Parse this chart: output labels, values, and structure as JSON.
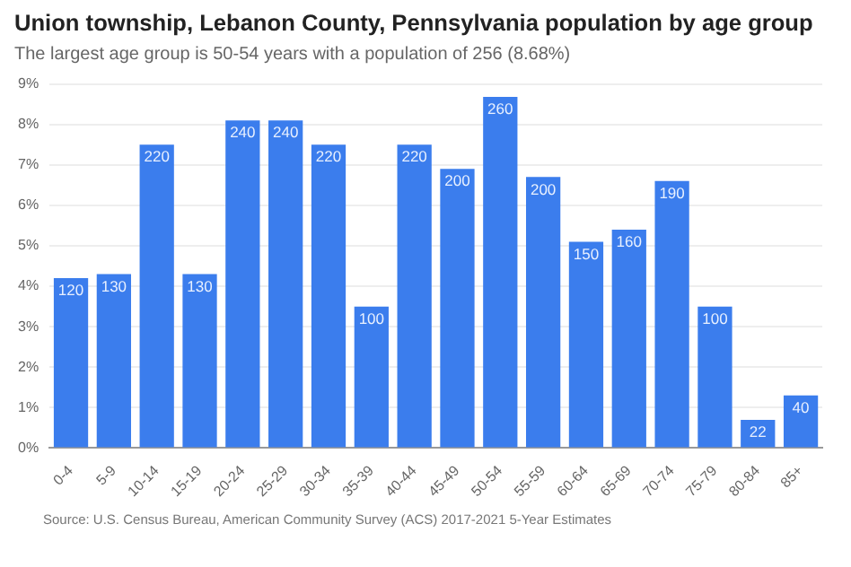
{
  "chart_data": {
    "type": "bar",
    "title": "Union township, Lebanon County, Pennsylvania population by age group",
    "subtitle": "The largest age group is 50-54 years with a population of 256 (8.68%)",
    "categories": [
      "0-4",
      "5-9",
      "10-14",
      "15-19",
      "20-24",
      "25-29",
      "30-34",
      "35-39",
      "40-44",
      "45-49",
      "50-54",
      "55-59",
      "60-64",
      "65-69",
      "70-74",
      "75-79",
      "80-84",
      "85+"
    ],
    "values": [
      4.2,
      4.3,
      7.5,
      4.3,
      8.1,
      8.1,
      7.5,
      3.5,
      7.5,
      6.9,
      8.68,
      6.7,
      5.1,
      5.4,
      6.6,
      3.5,
      0.7,
      1.3
    ],
    "color": "#3b7ded",
    "ylim": [
      0,
      9
    ],
    "yticks": [
      {
        "value": 0,
        "label": "0%"
      },
      {
        "value": 1,
        "label": "1%"
      },
      {
        "value": 2,
        "label": "2%"
      },
      {
        "value": 3,
        "label": "3%"
      },
      {
        "value": 4,
        "label": "4%"
      },
      {
        "value": 5,
        "label": "5%"
      },
      {
        "value": 6,
        "label": "6%"
      },
      {
        "value": 7,
        "label": "7%"
      },
      {
        "value": 8,
        "label": "8%"
      },
      {
        "value": 9,
        "label": "9%"
      }
    ],
    "grid": "y",
    "legend": false,
    "annotations": [
      {
        "text": "120",
        "x": "0-4",
        "y": 4.2
      },
      {
        "text": "130",
        "x": "5-9",
        "y": 4.3
      },
      {
        "text": "220",
        "x": "10-14",
        "y": 7.5
      },
      {
        "text": "130",
        "x": "15-19",
        "y": 4.3
      },
      {
        "text": "240",
        "x": "20-24",
        "y": 8.1
      },
      {
        "text": "240",
        "x": "25-29",
        "y": 8.1
      },
      {
        "text": "220",
        "x": "30-34",
        "y": 7.5
      },
      {
        "text": "100",
        "x": "35-39",
        "y": 3.5
      },
      {
        "text": "220",
        "x": "40-44",
        "y": 7.5
      },
      {
        "text": "200",
        "x": "45-49",
        "y": 6.9
      },
      {
        "text": "260",
        "x": "50-54",
        "y": 8.68
      },
      {
        "text": "200",
        "x": "55-59",
        "y": 6.7
      },
      {
        "text": "150",
        "x": "60-64",
        "y": 5.1
      },
      {
        "text": "160",
        "x": "65-69",
        "y": 5.4
      },
      {
        "text": "190",
        "x": "70-74",
        "y": 6.6
      },
      {
        "text": "100",
        "x": "75-79",
        "y": 3.5
      },
      {
        "text": "22",
        "x": "80-84",
        "y": 0.7
      },
      {
        "text": "40",
        "x": "85+",
        "y": 1.3
      },
      "Source: U.S. Census Bureau, American Community Survey (ACS) 2017-2021 5-Year Estimates"
    ]
  }
}
